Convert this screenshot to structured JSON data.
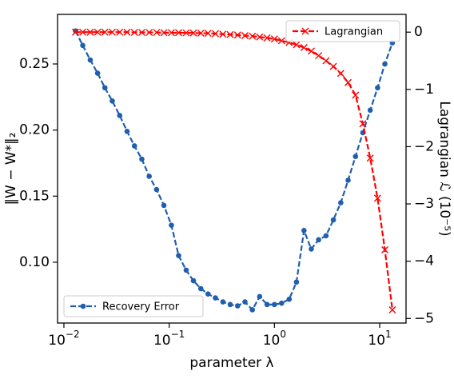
{
  "chart_data": {
    "type": "line",
    "xlabel": "parameter λ",
    "ylabel": "‖W − W*‖₂",
    "y2label": "Lagrangian ℒ (10⁻⁵)",
    "xscale": "log",
    "x": [
      0.0129,
      0.0151,
      0.0178,
      0.0209,
      0.0245,
      0.0288,
      0.0339,
      0.0398,
      0.0468,
      0.055,
      0.0646,
      0.0759,
      0.0891,
      0.105,
      0.123,
      0.145,
      0.17,
      0.2,
      0.234,
      0.275,
      0.324,
      0.38,
      0.447,
      0.525,
      0.617,
      0.724,
      0.851,
      1.0,
      1.17,
      1.38,
      1.62,
      1.91,
      2.24,
      2.63,
      3.09,
      3.63,
      4.27,
      5.01,
      5.89,
      6.92,
      8.13,
      9.55,
      11.2,
      13.2
    ],
    "series": [
      {
        "name": "Recovery Error",
        "color": "#1f5fad",
        "marker": "circle",
        "axis": "y",
        "legend_loc": "lower left",
        "values": [
          0.275,
          0.264,
          0.253,
          0.243,
          0.232,
          0.222,
          0.211,
          0.199,
          0.188,
          0.178,
          0.165,
          0.155,
          0.143,
          0.128,
          0.105,
          0.094,
          0.086,
          0.08,
          0.076,
          0.073,
          0.07,
          0.068,
          0.067,
          0.07,
          0.064,
          0.074,
          0.068,
          0.068,
          0.069,
          0.072,
          0.085,
          0.124,
          0.11,
          0.117,
          0.12,
          0.132,
          0.145,
          0.162,
          0.18,
          0.198,
          0.215,
          0.232,
          0.25,
          0.266
        ]
      },
      {
        "name": "Lagrangian",
        "color": "#ff0000",
        "marker": "x",
        "axis": "y2",
        "legend_loc": "upper right",
        "values": [
          0,
          0,
          0,
          0,
          0,
          0,
          0,
          0,
          -0.005,
          -0.005,
          -0.005,
          -0.005,
          -0.01,
          -0.01,
          -0.01,
          -0.012,
          -0.015,
          -0.018,
          -0.02,
          -0.027,
          -0.035,
          -0.042,
          -0.05,
          -0.06,
          -0.07,
          -0.085,
          -0.1,
          -0.12,
          -0.15,
          -0.18,
          -0.22,
          -0.27,
          -0.33,
          -0.41,
          -0.5,
          -0.6,
          -0.72,
          -0.88,
          -1.1,
          -1.6,
          -2.2,
          -2.9,
          -3.8,
          -4.85
        ]
      }
    ],
    "xlim": [
      0.0087,
      17.8
    ],
    "xticks": [
      {
        "value": 0.01,
        "label": "10",
        "exponent": "−2"
      },
      {
        "value": 0.1,
        "label": "10",
        "exponent": "−1"
      },
      {
        "value": 1,
        "label": "10",
        "exponent": "0"
      },
      {
        "value": 10,
        "label": "10",
        "exponent": "1"
      }
    ],
    "ylim": [
      0.054,
      0.2875
    ],
    "yticks": [
      {
        "value": 0.1,
        "label": "0.10"
      },
      0.15,
      {
        "value": 0.2,
        "label": "0.20"
      },
      0.25
    ],
    "y2lim": [
      -5.08,
      0.31
    ],
    "y2ticks": [
      0,
      {
        "value": -1,
        "label": "−1"
      },
      {
        "value": -2,
        "label": "−2"
      },
      {
        "value": -3,
        "label": "−3"
      },
      {
        "value": -4,
        "label": "−4"
      },
      {
        "value": -5,
        "label": "−5"
      }
    ]
  }
}
